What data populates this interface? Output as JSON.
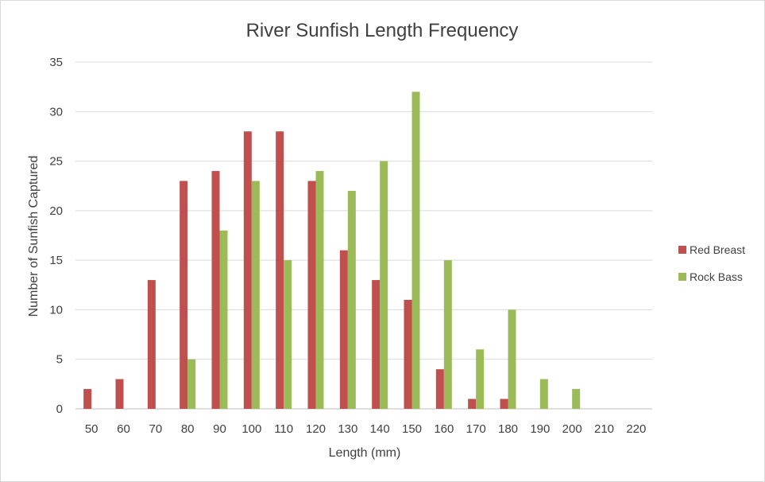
{
  "chart_data": {
    "type": "bar",
    "title": "River Sunfish Length Frequency",
    "xlabel": "Length (mm)",
    "ylabel": "Number of Sunfish Captured",
    "categories": [
      "50",
      "60",
      "70",
      "80",
      "90",
      "100",
      "110",
      "120",
      "130",
      "140",
      "150",
      "160",
      "170",
      "180",
      "190",
      "200",
      "210",
      "220"
    ],
    "ylim": [
      0,
      35
    ],
    "yticks": [
      0,
      5,
      10,
      15,
      20,
      25,
      30,
      35
    ],
    "grid": true,
    "legend_position": "right",
    "series": [
      {
        "name": "Red Breast",
        "color": "#c0504d",
        "values": [
          2,
          3,
          13,
          23,
          24,
          28,
          28,
          23,
          16,
          13,
          11,
          4,
          1,
          1,
          0,
          0,
          0,
          0
        ]
      },
      {
        "name": "Rock Bass",
        "color": "#9bbb59",
        "values": [
          0,
          0,
          0,
          5,
          18,
          23,
          15,
          24,
          22,
          25,
          32,
          15,
          6,
          10,
          3,
          2,
          0,
          0
        ]
      }
    ]
  }
}
